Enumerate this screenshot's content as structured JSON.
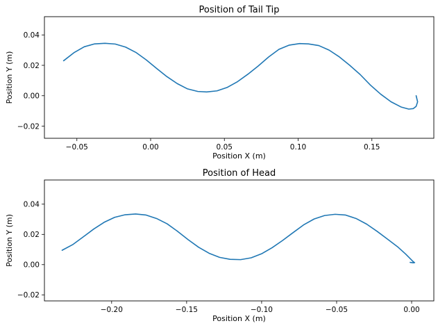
{
  "colors": {
    "series": "#1f77b4"
  },
  "chart_data": [
    {
      "type": "line",
      "title": "Position of Tail Tip",
      "xlabel": "Position X (m)",
      "ylabel": "Position Y (m)",
      "xlim": [
        -0.072,
        0.192
      ],
      "ylim": [
        -0.028,
        0.052
      ],
      "xticks": [
        -0.05,
        0.0,
        0.05,
        0.1,
        0.15
      ],
      "xtick_labels": [
        "−0.05",
        "0.00",
        "0.05",
        "0.10",
        "0.15"
      ],
      "yticks": [
        -0.02,
        0.0,
        0.02,
        0.04
      ],
      "ytick_labels": [
        "−0.02",
        "0.00",
        "0.02",
        "0.04"
      ],
      "grid": false,
      "series": [
        {
          "x": [
            -0.059,
            -0.052,
            -0.045,
            -0.038,
            -0.031,
            -0.024,
            -0.017,
            -0.01,
            -0.003,
            0.004,
            0.011,
            0.018,
            0.025,
            0.032,
            0.038,
            0.045,
            0.052,
            0.059,
            0.066,
            0.073,
            0.08,
            0.087,
            0.094,
            0.101,
            0.107,
            0.114,
            0.121,
            0.128,
            0.135,
            0.142,
            0.149,
            0.156,
            0.163,
            0.17,
            0.175,
            0.178,
            0.18,
            0.181,
            0.18
          ],
          "y": [
            0.023,
            0.0283,
            0.0322,
            0.0341,
            0.0345,
            0.034,
            0.032,
            0.0285,
            0.0236,
            0.018,
            0.0126,
            0.008,
            0.0045,
            0.0028,
            0.0025,
            0.0032,
            0.0055,
            0.0093,
            0.0142,
            0.0196,
            0.0255,
            0.0305,
            0.0333,
            0.0343,
            0.0341,
            0.033,
            0.03,
            0.0255,
            0.02,
            0.014,
            0.007,
            0.001,
            -0.004,
            -0.0075,
            -0.0088,
            -0.0085,
            -0.007,
            -0.004,
            0.0
          ]
        }
      ]
    },
    {
      "type": "line",
      "title": "Position of Head",
      "xlabel": "Position X (m)",
      "ylabel": "Position Y (m)",
      "xlim": [
        -0.2448,
        0.0148
      ],
      "ylim": [
        -0.024,
        0.056
      ],
      "xticks": [
        -0.2,
        -0.15,
        -0.1,
        -0.05,
        0.0
      ],
      "xtick_labels": [
        "−0.20",
        "−0.15",
        "−0.10",
        "−0.05",
        "0.00"
      ],
      "yticks": [
        -0.02,
        0.0,
        0.02,
        0.04
      ],
      "ytick_labels": [
        "−0.02",
        "0.00",
        "0.02",
        "0.04"
      ],
      "grid": false,
      "series": [
        {
          "x": [
            -0.233,
            -0.226,
            -0.219,
            -0.212,
            -0.205,
            -0.198,
            -0.191,
            -0.184,
            -0.177,
            -0.17,
            -0.163,
            -0.156,
            -0.149,
            -0.142,
            -0.135,
            -0.128,
            -0.121,
            -0.114,
            -0.107,
            -0.1,
            -0.093,
            -0.086,
            -0.079,
            -0.072,
            -0.065,
            -0.058,
            -0.051,
            -0.044,
            -0.037,
            -0.03,
            -0.023,
            -0.016,
            -0.009,
            -0.004,
            -0.001,
            0.001,
            0.002,
            0.001,
            -0.001
          ],
          "y": [
            0.0095,
            0.0132,
            0.0183,
            0.0235,
            0.028,
            0.0313,
            0.033,
            0.0335,
            0.0328,
            0.0305,
            0.027,
            0.022,
            0.0165,
            0.0115,
            0.0075,
            0.0048,
            0.0035,
            0.0033,
            0.0045,
            0.0072,
            0.0112,
            0.016,
            0.0212,
            0.0263,
            0.0302,
            0.0325,
            0.0333,
            0.0328,
            0.0305,
            0.0268,
            0.022,
            0.0168,
            0.0115,
            0.007,
            0.004,
            0.002,
            0.0013,
            0.0012,
            0.0015
          ]
        }
      ]
    }
  ]
}
